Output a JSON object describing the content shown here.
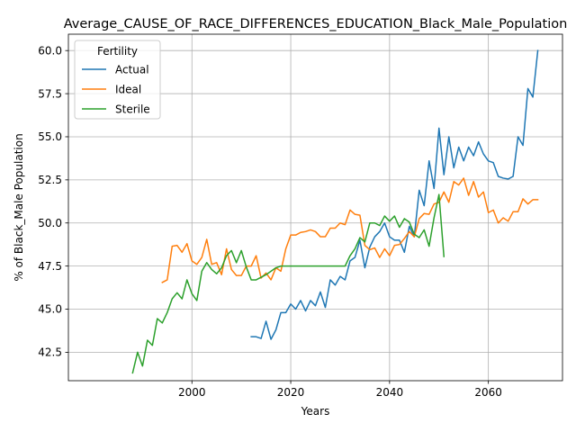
{
  "chart_data": {
    "type": "line",
    "title": "Average_CAUSE_OF_RACE_DIFFERENCES_EDUCATION_Black_Male_Population",
    "xlabel": "Years",
    "ylabel": "% of Black_Male Population",
    "xlim": [
      1975,
      2075
    ],
    "ylim": [
      40.85,
      60.95
    ],
    "xticks": [
      2000,
      2020,
      2040,
      2060
    ],
    "yticks": [
      42.5,
      45.0,
      47.5,
      50.0,
      52.5,
      55.0,
      57.5,
      60.0
    ],
    "grid": true,
    "legend": {
      "title": "Fertility",
      "position": "top-left"
    },
    "series": [
      {
        "name": "Actual",
        "color": "#1f77b4",
        "x": [
          2012,
          2013,
          2014,
          2015,
          2016,
          2017,
          2018,
          2019,
          2020,
          2021,
          2022,
          2023,
          2024,
          2025,
          2026,
          2027,
          2028,
          2029,
          2030,
          2031,
          2032,
          2033,
          2034,
          2035,
          2036,
          2037,
          2038,
          2039,
          2040,
          2041,
          2042,
          2043,
          2044,
          2045,
          2046,
          2047,
          2048,
          2049,
          2050,
          2051,
          2052,
          2053,
          2054,
          2055,
          2056,
          2057,
          2058,
          2059,
          2060,
          2061,
          2062,
          2063,
          2064,
          2065,
          2066,
          2067,
          2068,
          2069,
          2070
        ],
        "y": [
          43.4,
          43.4,
          43.3,
          44.3,
          43.25,
          43.8,
          44.8,
          44.8,
          45.3,
          45.0,
          45.5,
          44.9,
          45.5,
          45.2,
          46.0,
          45.1,
          46.7,
          46.4,
          46.9,
          46.7,
          47.8,
          48.0,
          49.0,
          47.4,
          48.6,
          49.2,
          49.5,
          50.0,
          49.2,
          49.0,
          49.0,
          48.3,
          49.8,
          49.2,
          51.9,
          51.0,
          53.6,
          52.0,
          55.5,
          52.8,
          55.0,
          53.2,
          54.4,
          53.6,
          54.4,
          53.9,
          54.7,
          54.0,
          53.6,
          53.5,
          52.7,
          52.6,
          52.55,
          52.7,
          55.0,
          54.5,
          57.8,
          57.3,
          60.0
        ]
      },
      {
        "name": "Ideal",
        "color": "#ff7f0e",
        "x": [
          1994,
          1995,
          1996,
          1997,
          1998,
          1999,
          2000,
          2001,
          2002,
          2003,
          2004,
          2005,
          2006,
          2007,
          2008,
          2009,
          2010,
          2011,
          2012,
          2013,
          2014,
          2015,
          2016,
          2017,
          2018,
          2019,
          2020,
          2021,
          2022,
          2023,
          2024,
          2025,
          2026,
          2027,
          2028,
          2029,
          2030,
          2031,
          2032,
          2033,
          2034,
          2035,
          2036,
          2037,
          2038,
          2039,
          2040,
          2041,
          2042,
          2043,
          2044,
          2045,
          2046,
          2047,
          2048,
          2049,
          2050,
          2051,
          2052,
          2053,
          2054,
          2055,
          2056,
          2057,
          2058,
          2059,
          2060,
          2061,
          2062,
          2063,
          2064,
          2065,
          2066,
          2067,
          2068,
          2069,
          2070
        ],
        "y": [
          46.55,
          46.7,
          48.65,
          48.7,
          48.3,
          48.8,
          47.8,
          47.6,
          48.0,
          49.05,
          47.6,
          47.7,
          47.0,
          48.5,
          47.3,
          46.95,
          46.95,
          47.5,
          47.5,
          48.1,
          46.8,
          47.1,
          46.7,
          47.4,
          47.2,
          48.5,
          49.3,
          49.3,
          49.45,
          49.5,
          49.6,
          49.5,
          49.2,
          49.2,
          49.7,
          49.7,
          50.0,
          49.9,
          50.75,
          50.5,
          50.45,
          48.7,
          48.45,
          48.55,
          48.0,
          48.5,
          48.1,
          48.7,
          48.75,
          49.1,
          49.5,
          49.2,
          50.25,
          50.55,
          50.5,
          51.1,
          51.2,
          51.8,
          51.2,
          52.4,
          52.2,
          52.6,
          51.6,
          52.4,
          51.5,
          51.8,
          50.6,
          50.75,
          50.0,
          50.3,
          50.1,
          50.65,
          50.65,
          51.4,
          51.1,
          51.35,
          51.35
        ]
      },
      {
        "name": "Sterile",
        "color": "#2ca02c",
        "x": [
          1988,
          1989,
          1990,
          1991,
          1992,
          1993,
          1994,
          1995,
          1996,
          1997,
          1998,
          1999,
          2000,
          2001,
          2002,
          2003,
          2004,
          2005,
          2006,
          2007,
          2008,
          2009,
          2010,
          2011,
          2012,
          2013,
          2014,
          2015,
          2016,
          2017,
          2018,
          2019,
          2020,
          2021,
          2022,
          2023,
          2024,
          2025,
          2026,
          2027,
          2028,
          2029,
          2030,
          2031,
          2032,
          2033,
          2034,
          2035,
          2036,
          2037,
          2038,
          2039,
          2040,
          2041,
          2042,
          2043,
          2044,
          2045,
          2046,
          2047,
          2048,
          2049,
          2050,
          2051
        ],
        "y": [
          41.3,
          42.5,
          41.7,
          43.2,
          42.9,
          44.45,
          44.2,
          44.8,
          45.6,
          45.95,
          45.6,
          46.7,
          45.9,
          45.5,
          47.2,
          47.7,
          47.3,
          47.05,
          47.4,
          48.1,
          48.4,
          47.7,
          48.4,
          47.45,
          46.7,
          46.7,
          46.85,
          47.0,
          47.2,
          47.4,
          47.5,
          47.5,
          47.5,
          47.5,
          47.5,
          47.5,
          47.5,
          47.5,
          47.5,
          47.5,
          47.5,
          47.5,
          47.5,
          47.5,
          48.1,
          48.5,
          49.15,
          48.9,
          50.0,
          50.0,
          49.85,
          50.4,
          50.1,
          50.4,
          49.75,
          50.25,
          50.05,
          49.35,
          49.15,
          49.6,
          48.65,
          50.3,
          51.65,
          48.05
        ]
      }
    ]
  }
}
